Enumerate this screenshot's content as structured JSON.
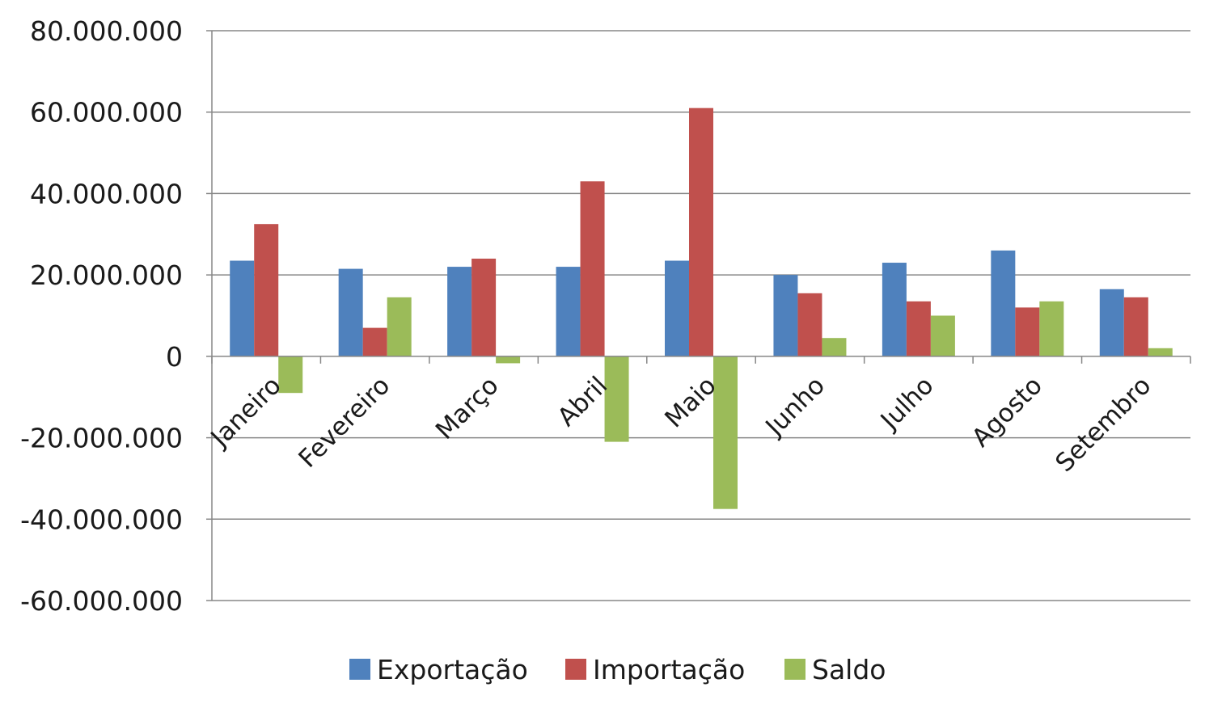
{
  "chart_data": {
    "type": "bar",
    "categories": [
      "Janeiro",
      "Fevereiro",
      "Março",
      "Abril",
      "Maio",
      "Junho",
      "Julho",
      "Agosto",
      "Setembro"
    ],
    "series": [
      {
        "name": "Exportação",
        "color": "#4f81bd",
        "values": [
          23500000,
          21500000,
          22000000,
          22000000,
          23500000,
          20000000,
          23000000,
          26000000,
          16500000
        ]
      },
      {
        "name": "Importação",
        "color": "#c0504d",
        "values": [
          32500000,
          7000000,
          24000000,
          43000000,
          61000000,
          15500000,
          13500000,
          12000000,
          14500000
        ]
      },
      {
        "name": "Saldo",
        "color": "#9bbb59",
        "values": [
          -9000000,
          14500000,
          -1700000,
          -21000000,
          -37500000,
          4500000,
          10000000,
          13500000,
          2000000
        ]
      }
    ],
    "ylim": [
      -60000000,
      80000000
    ],
    "yticks": [
      80000000,
      60000000,
      40000000,
      20000000,
      0,
      -20000000,
      -40000000,
      -60000000
    ],
    "ytick_labels": [
      "80.000.000",
      "60.000.000",
      "40.000.000",
      "20.000.000",
      "0",
      "-20.000.000",
      "-40.000.000",
      "-60.000.000"
    ],
    "grid": true,
    "legend_position": "bottom",
    "gridline_color": "#878787",
    "axis_color": "#878787"
  }
}
